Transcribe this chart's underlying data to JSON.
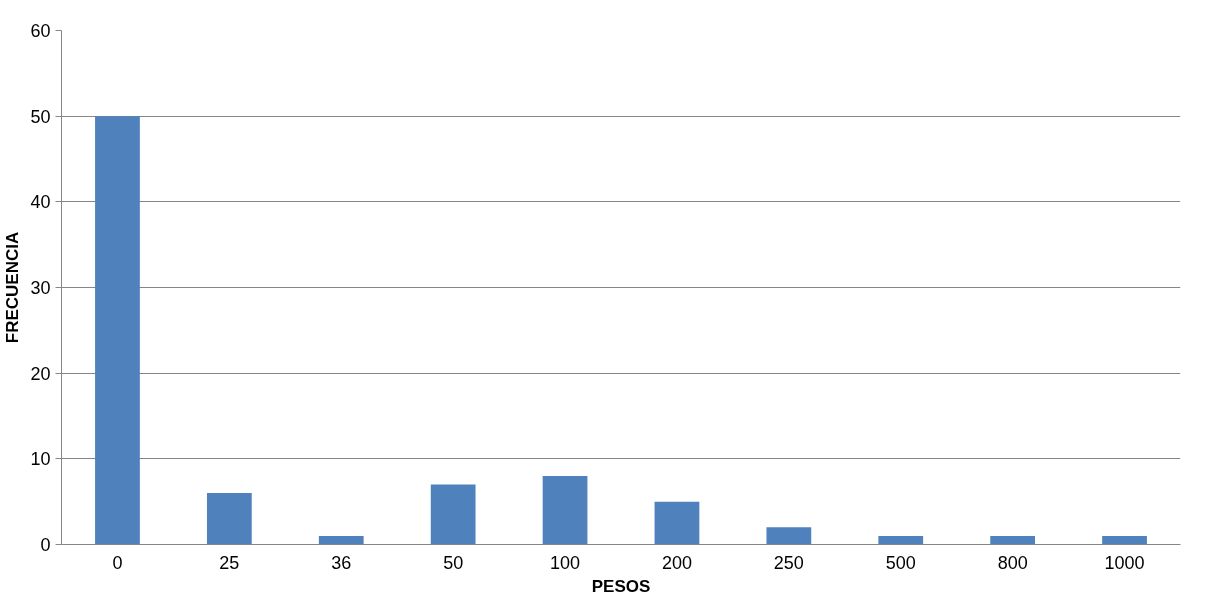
{
  "chart_data": {
    "type": "bar",
    "xlabel": "PESOS",
    "ylabel": "FRECUENCIA",
    "categories": [
      "0",
      "25",
      "36",
      "50",
      "100",
      "200",
      "250",
      "500",
      "800",
      "1000"
    ],
    "values": [
      50,
      6,
      1,
      7,
      8,
      5,
      2,
      1,
      1,
      1
    ],
    "color": "#4f81bd",
    "ylim": [
      0,
      60
    ],
    "yticks": [
      0,
      10,
      20,
      30,
      40,
      50,
      60
    ],
    "grid": "y"
  }
}
